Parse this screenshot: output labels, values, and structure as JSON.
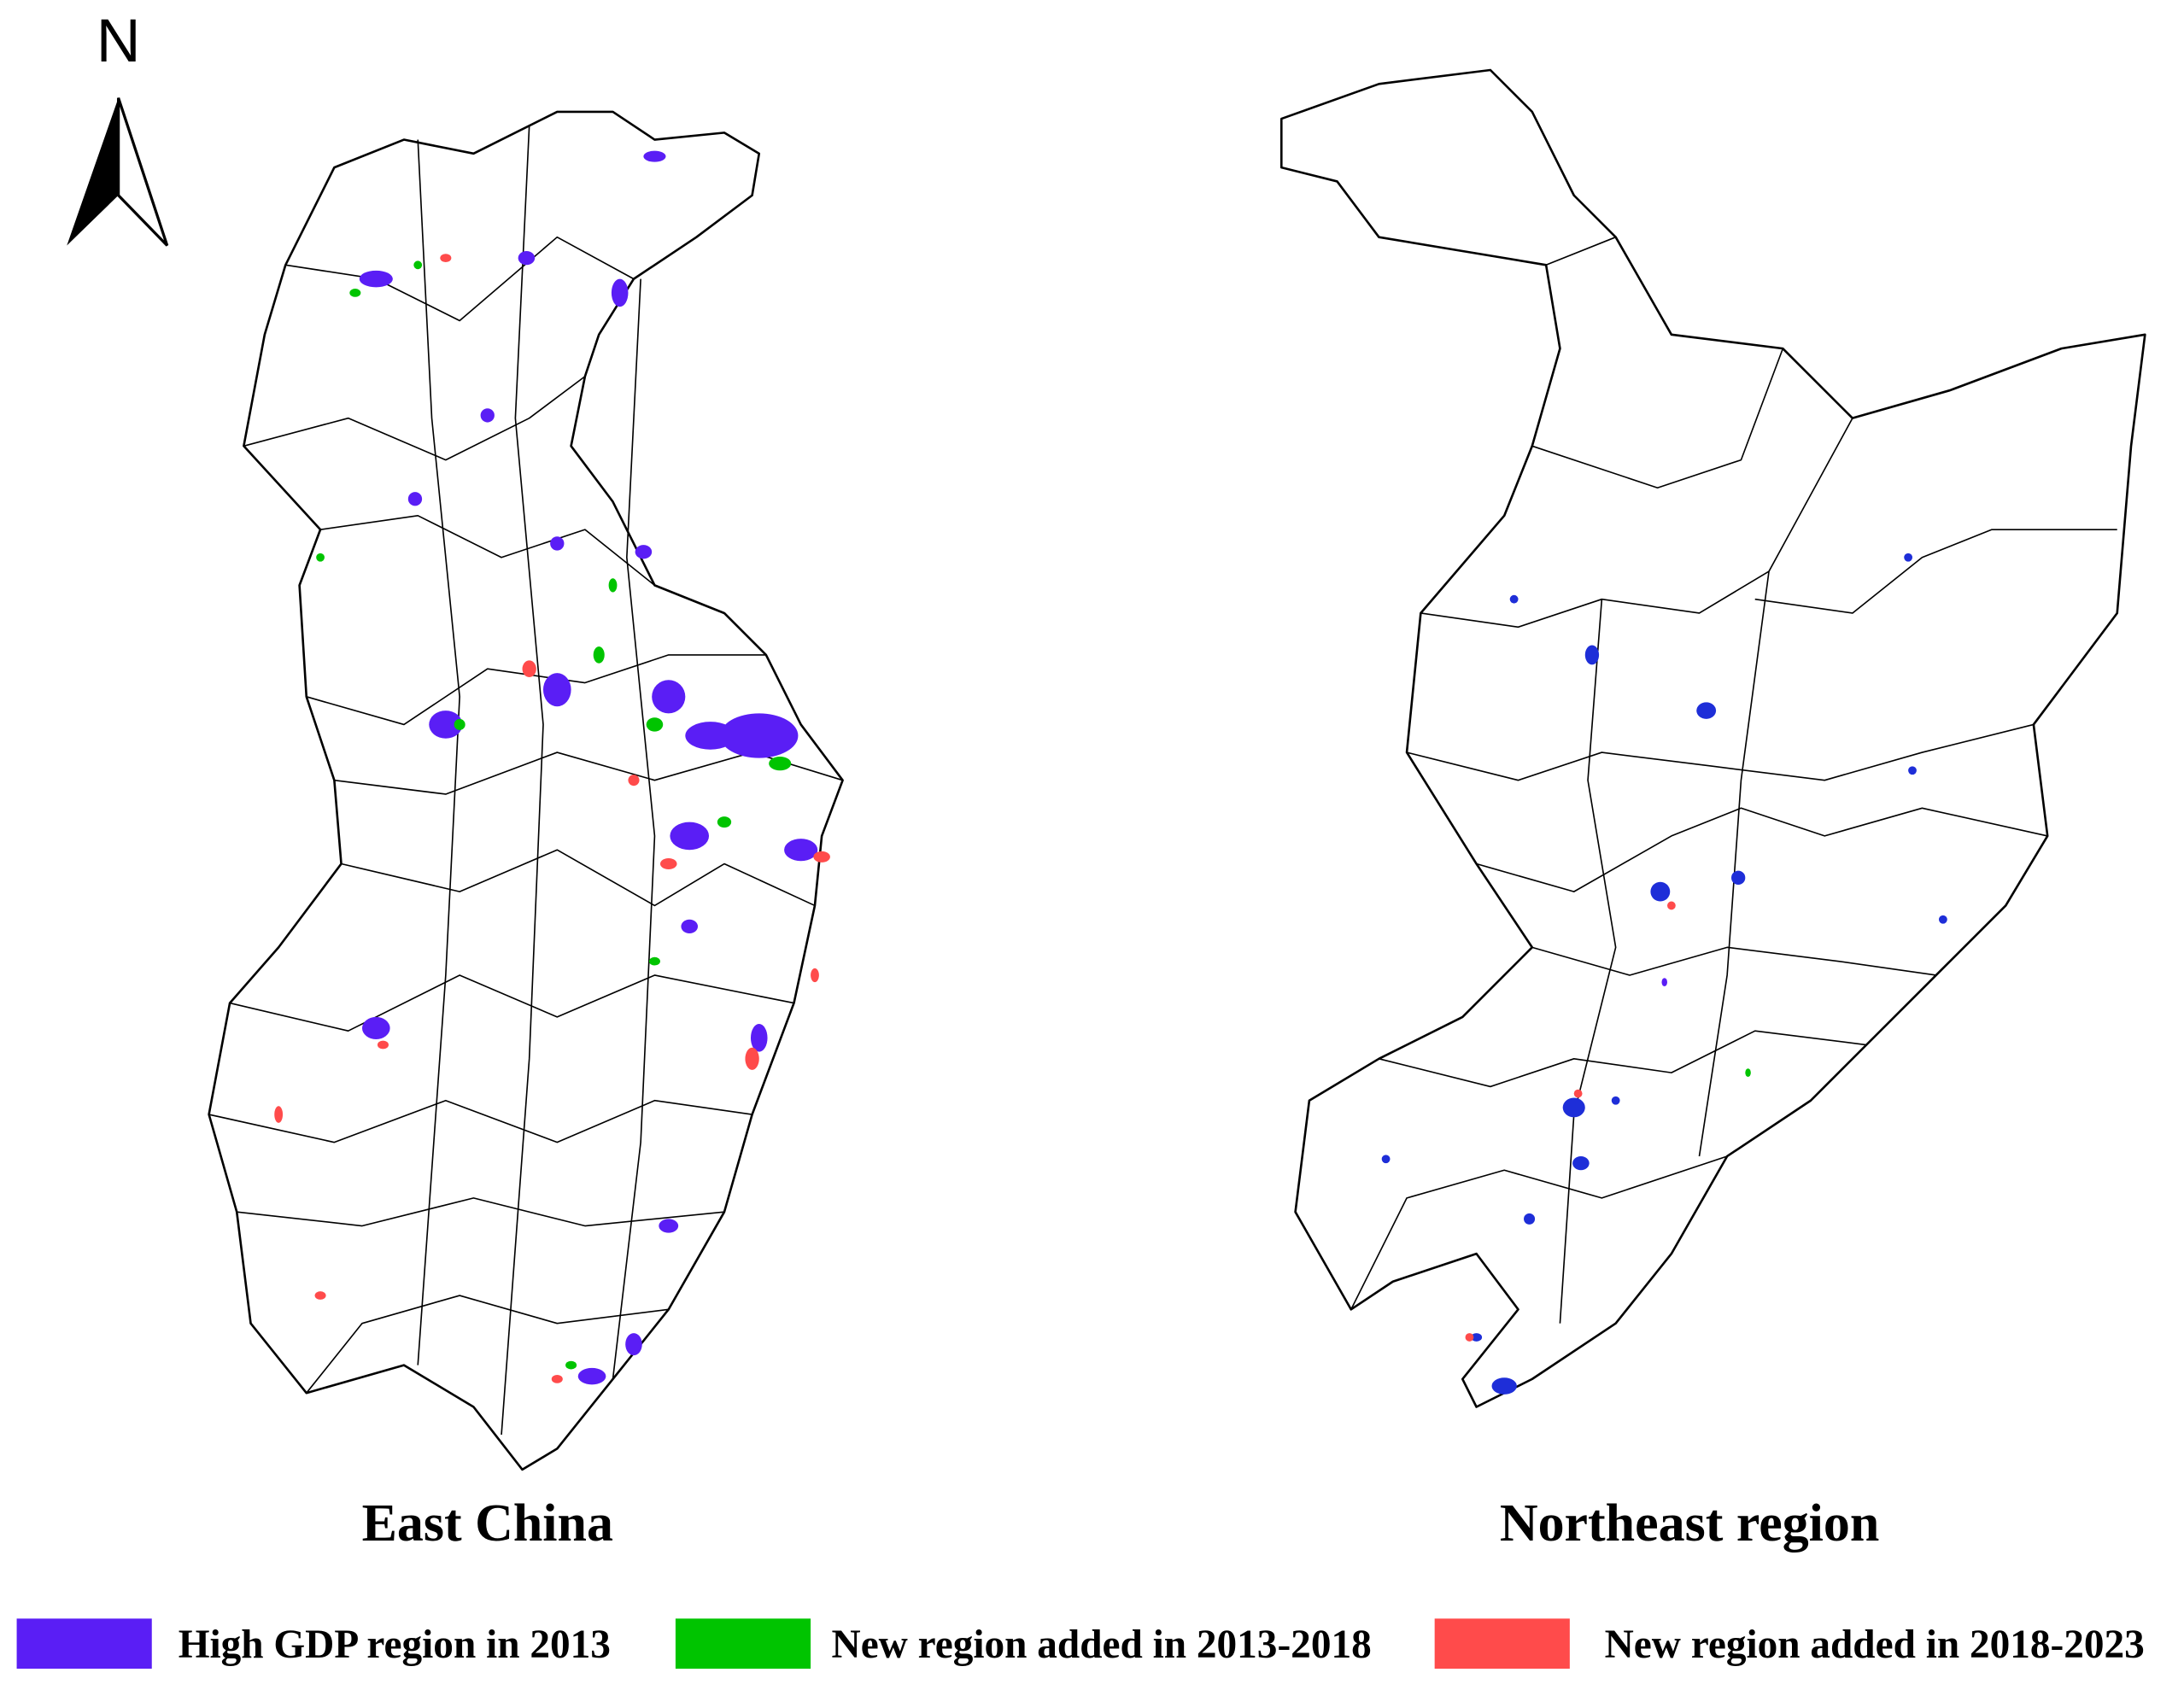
{
  "north_arrow": {
    "label": "N"
  },
  "maps": [
    {
      "title": "East China"
    },
    {
      "title": "Northeast region"
    }
  ],
  "legend": [
    {
      "label": "High GDP region in 2013",
      "color": "#5a1ef5"
    },
    {
      "label": "New region added in 2013-2018",
      "color": "#00c400"
    },
    {
      "label": "New region added in 2018-2023",
      "color": "#ff4b4b"
    }
  ]
}
